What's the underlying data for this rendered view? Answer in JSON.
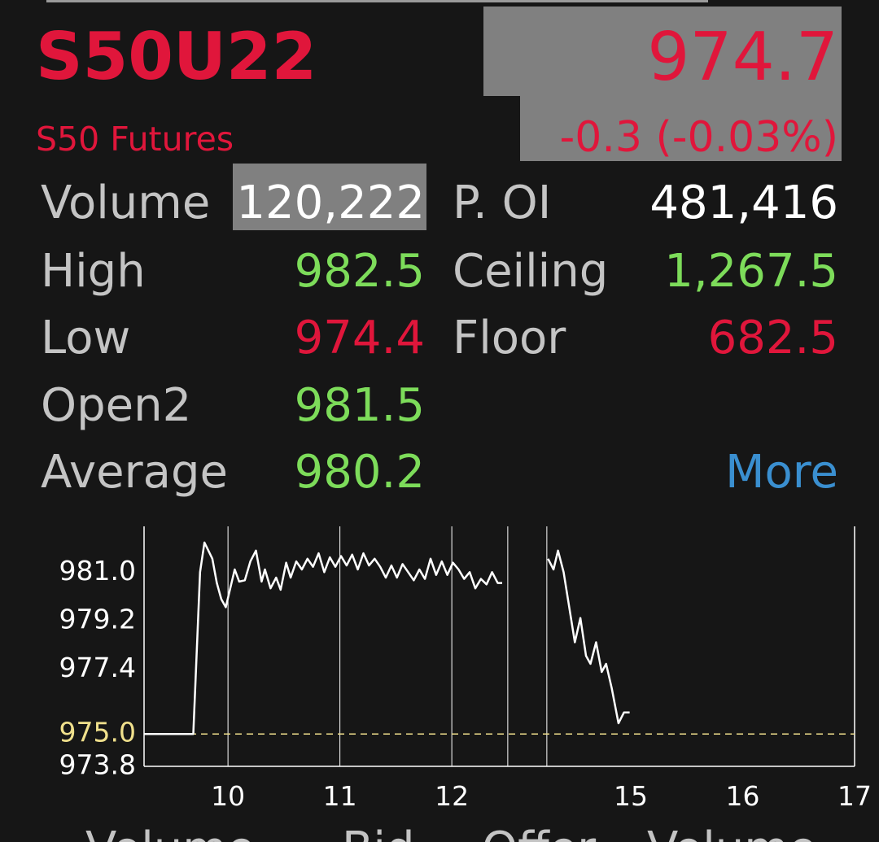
{
  "header": {
    "symbol": "S50U22",
    "name": "S50 Futures",
    "price": "974.7",
    "change": "-0.3 (-0.03%)"
  },
  "stats": {
    "rows": [
      [
        {
          "label": "Volume",
          "value": "120,222"
        },
        {
          "label": "P. OI",
          "value": "481,416"
        }
      ],
      [
        {
          "label": "High",
          "value": "982.5"
        },
        {
          "label": "Ceiling",
          "value": "1,267.5"
        }
      ],
      [
        {
          "label": "Low",
          "value": "974.4"
        },
        {
          "label": "Floor",
          "value": "682.5"
        }
      ],
      [
        {
          "label": "Open2",
          "value": "981.5"
        }
      ],
      [
        {
          "label": "Average",
          "value": "980.2"
        }
      ]
    ],
    "more": "More"
  },
  "chart_data": {
    "type": "line",
    "x": [
      9.25,
      9.69,
      9.75,
      9.79,
      9.86,
      9.9,
      9.94,
      9.98,
      10.06,
      10.1,
      10.15,
      10.2,
      10.25,
      10.3,
      10.33,
      10.38,
      10.43,
      10.47,
      10.52,
      10.56,
      10.61,
      10.66,
      10.71,
      10.76,
      10.81,
      10.86,
      10.91,
      10.96,
      11.01,
      11.06,
      11.11,
      11.16,
      11.21,
      11.26,
      11.31,
      11.36,
      11.41,
      11.46,
      11.51,
      11.56,
      11.61,
      11.66,
      11.71,
      11.76,
      11.81,
      11.86,
      11.91,
      11.96,
      12.01,
      12.06,
      12.11,
      12.16,
      12.21,
      12.26,
      12.31,
      12.36,
      12.41,
      12.45,
      13.0,
      14.26,
      14.31,
      14.35,
      14.4,
      14.45,
      14.5,
      14.55,
      14.6,
      14.64,
      14.69,
      14.74,
      14.78,
      14.83,
      14.89,
      14.94,
      14.99
    ],
    "values": [
      975.0,
      975.0,
      981.0,
      982.1,
      981.5,
      980.6,
      980.0,
      979.7,
      981.1,
      980.65,
      980.7,
      981.4,
      981.8,
      980.65,
      981.1,
      980.4,
      980.8,
      980.35,
      981.35,
      980.8,
      981.4,
      981.1,
      981.5,
      981.2,
      981.7,
      981.0,
      981.55,
      981.2,
      981.6,
      981.25,
      981.65,
      981.1,
      981.7,
      981.25,
      981.5,
      981.2,
      980.8,
      981.25,
      980.8,
      981.3,
      981.0,
      980.7,
      981.1,
      980.75,
      981.5,
      980.9,
      981.4,
      980.9,
      981.35,
      981.1,
      980.75,
      981.0,
      980.4,
      980.75,
      980.55,
      981.0,
      980.6,
      980.6,
      null,
      981.5,
      981.1,
      981.8,
      981.0,
      979.7,
      978.4,
      979.3,
      977.9,
      977.6,
      978.4,
      977.3,
      977.6,
      976.7,
      975.4,
      975.8,
      975.8
    ],
    "color": "#ffffff",
    "xlim": [
      9.25,
      17
    ],
    "x_break": [
      12.5,
      14.25
    ],
    "xticks": [
      10,
      11,
      12,
      15,
      16,
      17
    ],
    "ylim": [
      973.8,
      982.7
    ],
    "yticks": [
      {
        "value": 981,
        "label": "981.0"
      },
      979.2,
      977.4,
      {
        "value": 975,
        "label": "975.0"
      },
      973.8
    ],
    "reference_line": {
      "value": 975,
      "color": "#f0e08c"
    }
  },
  "footer_tabs": [
    "Volume",
    "Bid",
    "Offer",
    "Volume"
  ]
}
